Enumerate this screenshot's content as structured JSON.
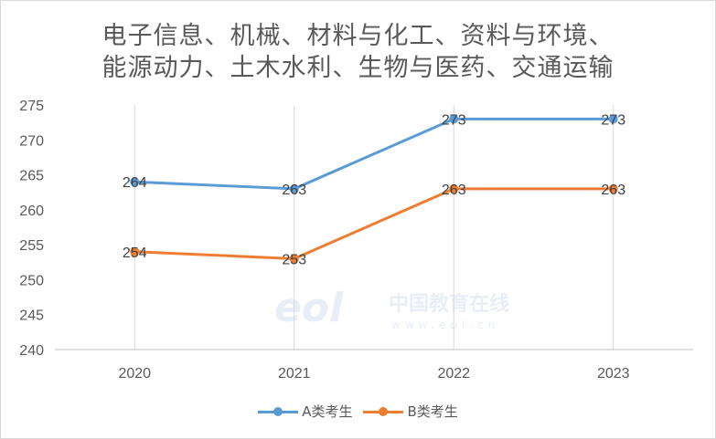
{
  "title_lines": [
    "电子信息、机械、材料与化工、资料与环境、",
    "能源动力、土木水利、生物与医药、交通运输"
  ],
  "chart_data": {
    "type": "line",
    "categories": [
      "2020",
      "2021",
      "2022",
      "2023"
    ],
    "series": [
      {
        "name": "A类考生",
        "values": [
          264,
          263,
          273,
          273
        ],
        "color": "#5b9bd5"
      },
      {
        "name": "B类考生",
        "values": [
          254,
          253,
          263,
          263
        ],
        "color": "#ed7d31"
      }
    ],
    "ylim": [
      240,
      275
    ],
    "yticks": [
      240,
      245,
      250,
      255,
      260,
      265,
      270,
      275
    ],
    "grid": "vertical",
    "legend": "bottom"
  },
  "watermark": {
    "brand": "eol",
    "cn_text": "中国教育在线",
    "url": "www.eol.cn"
  }
}
